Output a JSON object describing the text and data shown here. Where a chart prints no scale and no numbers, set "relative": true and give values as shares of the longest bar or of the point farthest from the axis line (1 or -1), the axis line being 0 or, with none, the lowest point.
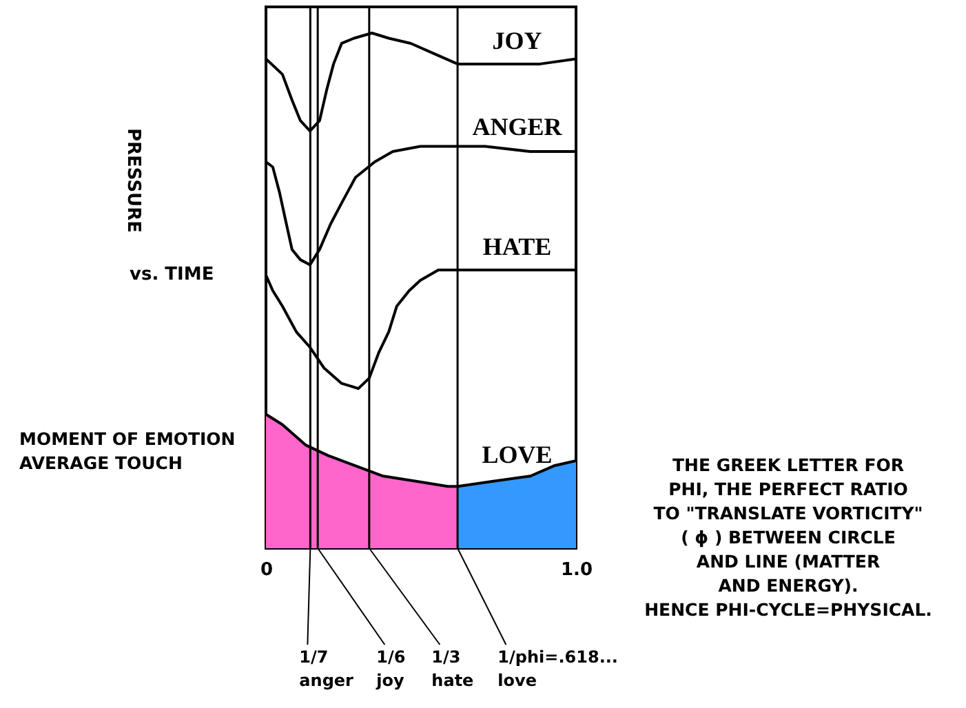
{
  "chart_data": {
    "type": "line",
    "relative": true,
    "xlim": [
      0,
      1
    ],
    "xticks": [
      0,
      {
        "value": 1,
        "label": "1.0"
      }
    ],
    "ylabel": "PRESSURE vs. TIME",
    "series": [
      {
        "name": "JOY",
        "color": "#000000",
        "x": [
          0,
          0.053,
          0.084,
          0.111,
          0.142,
          0.173,
          0.196,
          0.218,
          0.244,
          0.284,
          0.342,
          0.396,
          0.467,
          0.542,
          0.618,
          0.689,
          0.778,
          0.884,
          1
        ],
        "values": [
          0.95,
          0.92,
          0.87,
          0.83,
          0.81,
          0.83,
          0.89,
          0.94,
          0.98,
          0.99,
          1,
          0.99,
          0.98,
          0.96,
          0.94,
          0.94,
          0.94,
          0.94,
          0.95
        ]
      },
      {
        "name": "ANGER",
        "color": "#000000",
        "x": [
          0,
          0.022,
          0.044,
          0.062,
          0.084,
          0.111,
          0.142,
          0.173,
          0.209,
          0.244,
          0.289,
          0.351,
          0.409,
          0.498,
          0.587,
          0.707,
          0.853,
          1
        ],
        "values": [
          0.75,
          0.74,
          0.69,
          0.64,
          0.58,
          0.56,
          0.55,
          0.58,
          0.63,
          0.67,
          0.72,
          0.75,
          0.77,
          0.78,
          0.78,
          0.78,
          0.77,
          0.77
        ]
      },
      {
        "name": "HATE",
        "color": "#000000",
        "x": [
          0,
          0.022,
          0.053,
          0.098,
          0.142,
          0.187,
          0.244,
          0.298,
          0.333,
          0.364,
          0.396,
          0.422,
          0.462,
          0.498,
          0.556,
          0.676,
          0.822,
          1
        ],
        "values": [
          0.53,
          0.5,
          0.47,
          0.42,
          0.39,
          0.35,
          0.32,
          0.31,
          0.33,
          0.38,
          0.42,
          0.47,
          0.5,
          0.52,
          0.54,
          0.54,
          0.54,
          0.54
        ]
      },
      {
        "name": "LOVE",
        "color": "#000000",
        "x": [
          0,
          0.053,
          0.129,
          0.2,
          0.289,
          0.378,
          0.484,
          0.587,
          0.618,
          0.733,
          0.853,
          0.929,
          1
        ],
        "values": [
          0.26,
          0.24,
          0.2,
          0.18,
          0.16,
          0.14,
          0.13,
          0.12,
          0.12,
          0.13,
          0.14,
          0.16,
          0.17
        ]
      },
      {
        "type": "area",
        "color": "#ff66cc",
        "x": [
          0,
          0.053,
          0.129,
          0.2,
          0.289,
          0.378,
          0.484,
          0.587,
          0.618
        ],
        "values": [
          0.26,
          0.24,
          0.2,
          0.18,
          0.16,
          0.14,
          0.13,
          0.12,
          0.12
        ]
      },
      {
        "type": "area",
        "color": "#3399ff",
        "x": [
          0.618,
          0.733,
          0.853,
          0.929,
          1
        ],
        "values": [
          0.12,
          0.13,
          0.14,
          0.16,
          0.17
        ]
      }
    ],
    "ref_lines": [
      {
        "axis": "x",
        "value": 0.143,
        "label": "1/7\nanger"
      },
      {
        "axis": "x",
        "value": 0.167,
        "label": "1/6\njoy"
      },
      {
        "axis": "x",
        "value": 0.333,
        "label": "1/3\nhate"
      },
      {
        "axis": "x",
        "value": 0.618,
        "label": "1/phi=.618...\nlove"
      }
    ],
    "annotations": [
      "MOMENT OF EMOTION\nAVERAGE TOUCH",
      "THE GREEK LETTER FOR\nPHI, THE PERFECT RATIO\nTO \"TRANSLATE VORTICITY\"\n( ϕ ) BETWEEN CIRCLE\nAND LINE (MATTER\nAND ENERGY).\nHENCE PHI-CYCLE=PHYSICAL."
    ]
  }
}
